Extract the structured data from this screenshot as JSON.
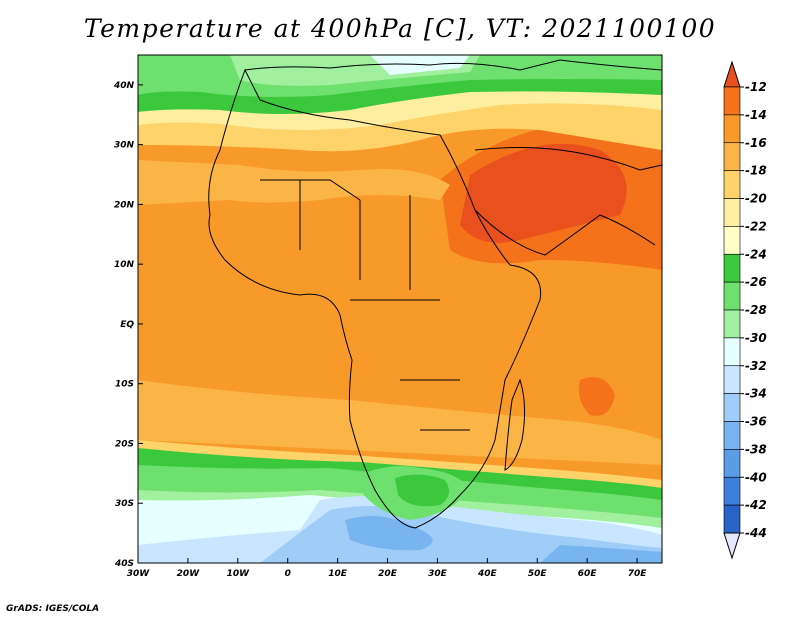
{
  "title": "Temperature at 400hPa [C], VT: 2021100100",
  "credit": "GrADS: IGES/COLA",
  "map": {
    "lon_range": [
      -30,
      75
    ],
    "lat_range": [
      -40,
      45
    ],
    "x_ticks": [
      "30W",
      "20W",
      "10W",
      "0",
      "10E",
      "20E",
      "30E",
      "40E",
      "50E",
      "60E",
      "70E"
    ],
    "y_ticks": [
      "40N",
      "30N",
      "20N",
      "10N",
      "EQ",
      "10S",
      "20S",
      "30S",
      "40S"
    ]
  },
  "colorbar": {
    "labels": [
      "-12",
      "-14",
      "-16",
      "-18",
      "-20",
      "-22",
      "-24",
      "-26",
      "-28",
      "-30",
      "-32",
      "-34",
      "-36",
      "-38",
      "-40",
      "-42",
      "-44"
    ],
    "colors": [
      "#e8501e",
      "#f4721a",
      "#f89a2a",
      "#fbb446",
      "#fdd36a",
      "#fdeea0",
      "#ffffc8",
      "#3cc83c",
      "#6ee06e",
      "#a0f0a0",
      "#e6ffff",
      "#c8e6ff",
      "#a0cdf8",
      "#78b4f0",
      "#5a9ce6",
      "#3c80dc",
      "#2864c8",
      "#1448b4",
      "#0a2880"
    ]
  },
  "chart_data": {
    "type": "heatmap",
    "title": "Temperature at 400hPa [C], VT: 2021100100",
    "x_ticks": [
      "30W",
      "20W",
      "10W",
      "0",
      "10E",
      "20E",
      "30E",
      "40E",
      "50E",
      "60E",
      "70E"
    ],
    "y_ticks": [
      "40N",
      "30N",
      "20N",
      "10N",
      "EQ",
      "10S",
      "20S",
      "30S",
      "40S"
    ],
    "lon_range": [
      -30,
      75
    ],
    "lat_range": [
      -40,
      45
    ],
    "color_levels": [
      -44,
      -42,
      -40,
      -38,
      -36,
      -34,
      -32,
      -30,
      -28,
      -26,
      -24,
      -22,
      -20,
      -18,
      -16,
      -14,
      -12
    ]
  }
}
